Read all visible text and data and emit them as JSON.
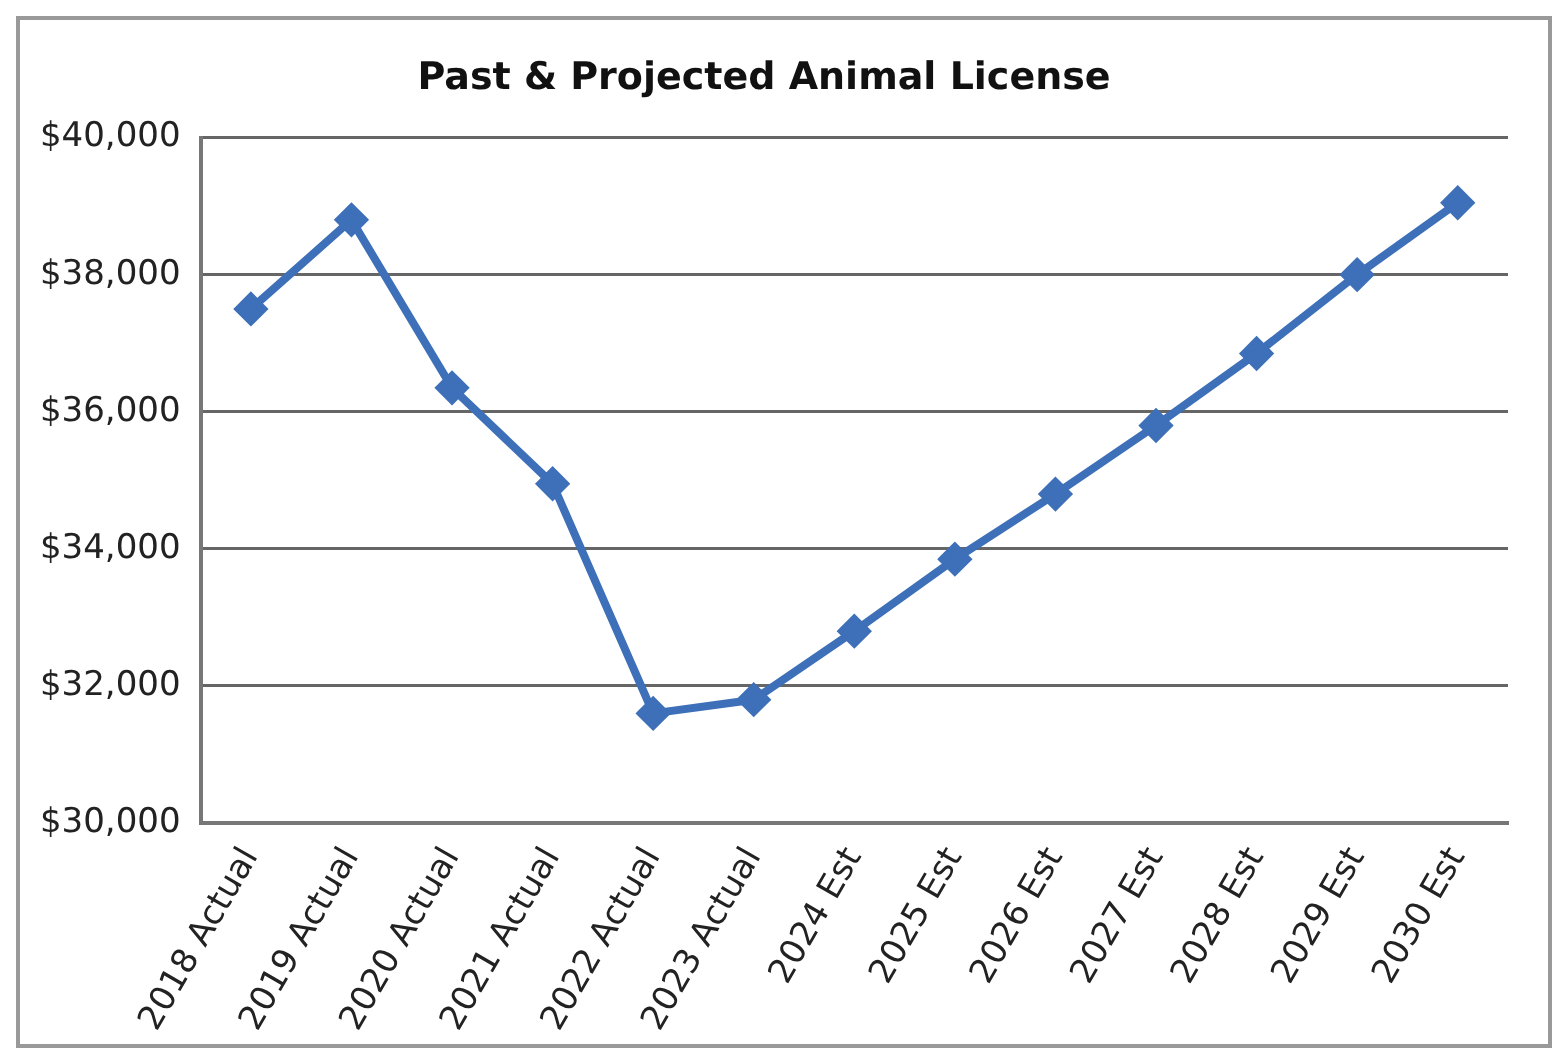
{
  "chart_data": {
    "type": "line",
    "title": "Past & Projected Animal License",
    "categories": [
      "2018 Actual",
      "2019 Actual",
      "2020 Actual",
      "2021 Actual",
      "2022 Actual",
      "2023 Actual",
      "2024 Est",
      "2025 Est",
      "2026 Est",
      "2027 Est",
      "2028 Est",
      "2029 Est",
      "2030 Est"
    ],
    "series": [
      {
        "color": "#3d70b8",
        "values": [
          37500,
          38800,
          36350,
          34950,
          31600,
          31800,
          32800,
          33850,
          34800,
          35800,
          36850,
          38000,
          39050
        ]
      }
    ],
    "ylim": [
      30000,
      40000
    ],
    "yticks": [
      {
        "value": 30000,
        "label": "$30,000"
      },
      {
        "value": 32000,
        "label": "$32,000"
      },
      {
        "value": 34000,
        "label": "$34,000"
      },
      {
        "value": 36000,
        "label": "$36,000"
      },
      {
        "value": 38000,
        "label": "$38,000"
      },
      {
        "value": 40000,
        "label": "$40,000"
      }
    ],
    "grid": "y",
    "legend": false,
    "marker": "diamond",
    "line_style": "solid"
  }
}
